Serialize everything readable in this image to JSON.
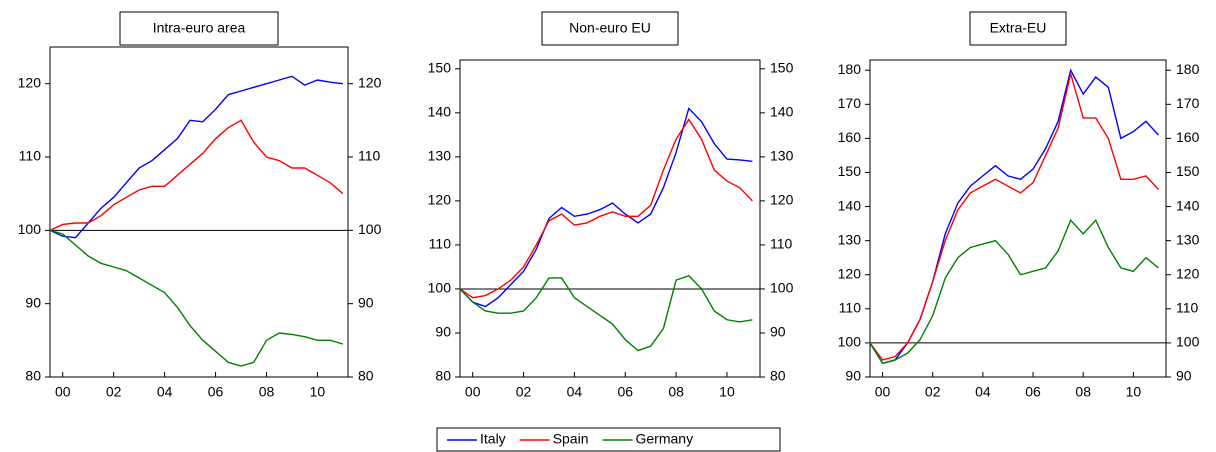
{
  "chart_data": [
    {
      "type": "line",
      "title": "Intra-euro area",
      "x": [
        1999.5,
        2000,
        2000.5,
        2001,
        2001.5,
        2002,
        2002.5,
        2003,
        2003.5,
        2004,
        2004.5,
        2005,
        2005.5,
        2006,
        2006.5,
        2007,
        2007.5,
        2008,
        2008.5,
        2009,
        2009.5,
        2010,
        2010.5,
        2011
      ],
      "xlim": [
        1999.5,
        2011.2
      ],
      "xticks": [
        {
          "value": 2000,
          "label": "00"
        },
        {
          "value": 2002,
          "label": "02"
        },
        {
          "value": 2004,
          "label": "04"
        },
        {
          "value": 2006,
          "label": "06"
        },
        {
          "value": 2008,
          "label": "08"
        },
        {
          "value": 2010,
          "label": "10"
        }
      ],
      "ylim": [
        80,
        125
      ],
      "yticks": [
        80,
        90,
        100,
        110,
        120
      ],
      "y2lim": [
        80,
        125
      ],
      "y2ticks": [
        80,
        90,
        100,
        110,
        120
      ],
      "hline": 100,
      "series": [
        {
          "name": "Italy",
          "color": "#0000ff",
          "values": [
            100,
            99.2,
            99,
            101,
            103,
            104.5,
            106.5,
            108.5,
            109.5,
            111,
            112.5,
            115,
            114.8,
            116.5,
            118.5,
            119,
            119.5,
            120,
            120.5,
            121,
            119.8,
            120.5,
            120.2,
            120
          ]
        },
        {
          "name": "Spain",
          "color": "#ff0000",
          "values": [
            100,
            100.8,
            101,
            101,
            102,
            103.5,
            104.5,
            105.5,
            106,
            106,
            107.5,
            109,
            110.5,
            112.5,
            114,
            115,
            112,
            110,
            109.5,
            108.5,
            108.5,
            107.5,
            106.5,
            105
          ]
        },
        {
          "name": "Germany",
          "color": "#008000",
          "values": [
            100,
            99.5,
            98,
            96.5,
            95.5,
            95,
            94.5,
            93.5,
            92.5,
            91.5,
            89.5,
            87,
            85,
            83.5,
            82,
            81.5,
            82,
            85,
            86,
            85.8,
            85.5,
            85,
            85,
            84.5
          ]
        }
      ]
    },
    {
      "type": "line",
      "title": "Non-euro EU",
      "x": [
        1999.5,
        2000,
        2000.5,
        2001,
        2001.5,
        2002,
        2002.5,
        2003,
        2003.5,
        2004,
        2004.5,
        2005,
        2005.5,
        2006,
        2006.5,
        2007,
        2007.5,
        2008,
        2008.5,
        2009,
        2009.5,
        2010,
        2010.5,
        2011
      ],
      "xlim": [
        1999.5,
        2011.3
      ],
      "xticks": [
        {
          "value": 2000,
          "label": "00"
        },
        {
          "value": 2002,
          "label": "02"
        },
        {
          "value": 2004,
          "label": "04"
        },
        {
          "value": 2006,
          "label": "06"
        },
        {
          "value": 2008,
          "label": "08"
        },
        {
          "value": 2010,
          "label": "10"
        }
      ],
      "ylim": [
        80,
        152
      ],
      "yticks": [
        80,
        90,
        100,
        110,
        120,
        130,
        140,
        150
      ],
      "y2lim": [
        80,
        152
      ],
      "y2ticks": [
        80,
        90,
        100,
        110,
        120,
        130,
        140,
        150
      ],
      "hline": 100,
      "series": [
        {
          "name": "Italy",
          "color": "#0000ff",
          "values": [
            100,
            97,
            96,
            98,
            101,
            104,
            109,
            116,
            118.5,
            116.5,
            117,
            118,
            119.5,
            117,
            115,
            117,
            123,
            131,
            141,
            138,
            133,
            129.5,
            129.3,
            129
          ]
        },
        {
          "name": "Spain",
          "color": "#ff0000",
          "values": [
            100,
            98,
            98.5,
            100,
            102,
            105,
            110,
            115.5,
            117,
            114.5,
            115,
            116.5,
            117.5,
            116.5,
            116.5,
            119,
            127,
            134,
            138.5,
            134,
            127,
            124.5,
            123,
            120
          ]
        },
        {
          "name": "Germany",
          "color": "#008000",
          "values": [
            100,
            97,
            95,
            94.5,
            94.5,
            95,
            98,
            102.5,
            102.5,
            98,
            96,
            94,
            92,
            88.5,
            86,
            87,
            91,
            102,
            103,
            100,
            95,
            93,
            92.5,
            93
          ]
        }
      ]
    },
    {
      "type": "line",
      "title": "Extra-EU",
      "x": [
        1999.5,
        2000,
        2000.5,
        2001,
        2001.5,
        2002,
        2002.5,
        2003,
        2003.5,
        2004,
        2004.5,
        2005,
        2005.5,
        2006,
        2006.5,
        2007,
        2007.5,
        2008,
        2008.5,
        2009,
        2009.5,
        2010,
        2010.5,
        2011
      ],
      "xlim": [
        1999.5,
        2011.3
      ],
      "xticks": [
        {
          "value": 2000,
          "label": "00"
        },
        {
          "value": 2002,
          "label": "02"
        },
        {
          "value": 2004,
          "label": "04"
        },
        {
          "value": 2006,
          "label": "06"
        },
        {
          "value": 2008,
          "label": "08"
        },
        {
          "value": 2010,
          "label": "10"
        }
      ],
      "ylim": [
        90,
        183
      ],
      "yticks": [
        90,
        100,
        110,
        120,
        130,
        140,
        150,
        160,
        170,
        180
      ],
      "y2lim": [
        90,
        183
      ],
      "y2ticks": [
        90,
        100,
        110,
        120,
        130,
        140,
        150,
        160,
        170,
        180
      ],
      "hline": 100,
      "series": [
        {
          "name": "Italy",
          "color": "#0000ff",
          "values": [
            100,
            94,
            95,
            100,
            107,
            118,
            132,
            141,
            146,
            149,
            152,
            149,
            148,
            151,
            157,
            165,
            180,
            173,
            178,
            175,
            160,
            162,
            165,
            161
          ]
        },
        {
          "name": "Spain",
          "color": "#ff0000",
          "values": [
            100,
            95,
            96,
            100,
            107,
            118,
            130,
            139,
            144,
            146,
            148,
            146,
            144,
            147,
            155,
            163,
            179,
            166,
            166,
            160,
            148,
            148,
            149,
            145
          ]
        },
        {
          "name": "Germany",
          "color": "#008000",
          "values": [
            100,
            94,
            95,
            97,
            101,
            108,
            119,
            125,
            128,
            129,
            130,
            126,
            120,
            121,
            122,
            127,
            136,
            132,
            136,
            128,
            122,
            121,
            125,
            122
          ]
        }
      ]
    }
  ],
  "legend": "bottom"
}
